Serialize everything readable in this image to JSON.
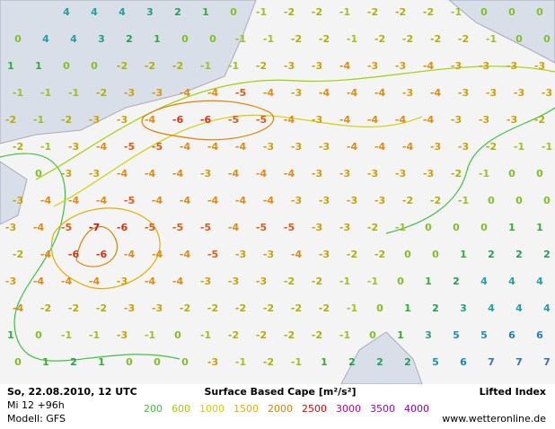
{
  "map": {
    "lifted_index_rows": [
      [
        null,
        null,
        4,
        4,
        4,
        3,
        2,
        1,
        0,
        -1,
        -2,
        -2,
        -1,
        -2,
        -2,
        -2,
        -1,
        0,
        0,
        0
      ],
      [
        0,
        4,
        4,
        3,
        2,
        1,
        0,
        0,
        -1,
        -1,
        -2,
        -2,
        -1,
        -2,
        -2,
        -2,
        -2,
        -1,
        0,
        0
      ],
      [
        1,
        1,
        0,
        0,
        -2,
        -2,
        -2,
        -1,
        -1,
        -2,
        -3,
        -3,
        -4,
        -3,
        -3,
        -4,
        -3,
        -3,
        -3,
        -3
      ],
      [
        -1,
        -1,
        -1,
        -2,
        -3,
        -3,
        -4,
        -4,
        -5,
        -4,
        -3,
        -4,
        -4,
        -4,
        -3,
        -4,
        -3,
        -3,
        -3,
        -3
      ],
      [
        -2,
        -1,
        -2,
        -3,
        -3,
        -4,
        -6,
        -6,
        -5,
        -5,
        -4,
        -3,
        -4,
        -4,
        -4,
        -4,
        -3,
        -3,
        -3,
        -2
      ],
      [
        -2,
        -1,
        -3,
        -4,
        -5,
        -5,
        -4,
        -4,
        -4,
        -3,
        -3,
        -3,
        -4,
        -4,
        -4,
        -3,
        -3,
        -2,
        -1,
        -1
      ],
      [
        null,
        0,
        -3,
        -3,
        -4,
        -4,
        -4,
        -3,
        -4,
        -4,
        -4,
        -3,
        -3,
        -3,
        -3,
        -3,
        -2,
        -1,
        0,
        0
      ],
      [
        -3,
        -4,
        -4,
        -4,
        -5,
        -4,
        -4,
        -4,
        -4,
        -4,
        -3,
        -3,
        -3,
        -3,
        -2,
        -2,
        -1,
        0,
        0,
        0
      ],
      [
        -3,
        -4,
        -5,
        -7,
        -6,
        -5,
        -5,
        -5,
        -4,
        -5,
        -5,
        -3,
        -3,
        -2,
        -1,
        0,
        0,
        0,
        1,
        1
      ],
      [
        -2,
        -4,
        -6,
        -6,
        -4,
        -4,
        -4,
        -5,
        -3,
        -3,
        -4,
        -3,
        -2,
        -2,
        0,
        0,
        1,
        2,
        2,
        2
      ],
      [
        -3,
        -4,
        -4,
        -4,
        -3,
        -4,
        -4,
        -3,
        -3,
        -3,
        -2,
        -2,
        -1,
        -1,
        0,
        1,
        2,
        4,
        4,
        4
      ],
      [
        -4,
        -2,
        -2,
        -2,
        -3,
        -3,
        -2,
        -2,
        -2,
        -2,
        -2,
        -2,
        -1,
        0,
        1,
        2,
        3,
        4,
        4,
        4
      ],
      [
        1,
        0,
        -1,
        -1,
        -3,
        -1,
        0,
        -1,
        -2,
        -2,
        -2,
        -2,
        -1,
        0,
        1,
        3,
        5,
        5,
        6,
        6
      ],
      [
        0,
        1,
        2,
        1,
        0,
        0,
        0,
        -3,
        -1,
        -2,
        -1,
        1,
        2,
        2,
        2,
        5,
        6,
        7,
        7,
        7
      ]
    ],
    "label_colors": [
      "#d01010",
      "#e03010",
      "#e05a10",
      "#e08a10",
      "#d0a000",
      "#b0b000",
      "#a0c020",
      "#80c020",
      "#30b030",
      "#20a050",
      "#20a080",
      "#20a0a0",
      "#2090b0",
      "#2080c0",
      "#3070c0"
    ]
  },
  "footer": {
    "date": "So, 22.08.2010, 12 UTC",
    "lead": "Mi 12 +96h",
    "model": "Modell: GFS",
    "cape_title": "Surface Based Cape [m²/s²]",
    "li_title": "Lifted Index",
    "site": "www.wetteronline.de"
  },
  "legend": {
    "values": [
      200,
      600,
      1000,
      1500,
      2000,
      2500,
      3000,
      3500,
      4000
    ],
    "colors": [
      "#40c040",
      "#a0d000",
      "#d0d000",
      "#e0b000",
      "#e08000",
      "#e00000",
      "#c000a0",
      "#a000c0",
      "#8000c0"
    ]
  }
}
